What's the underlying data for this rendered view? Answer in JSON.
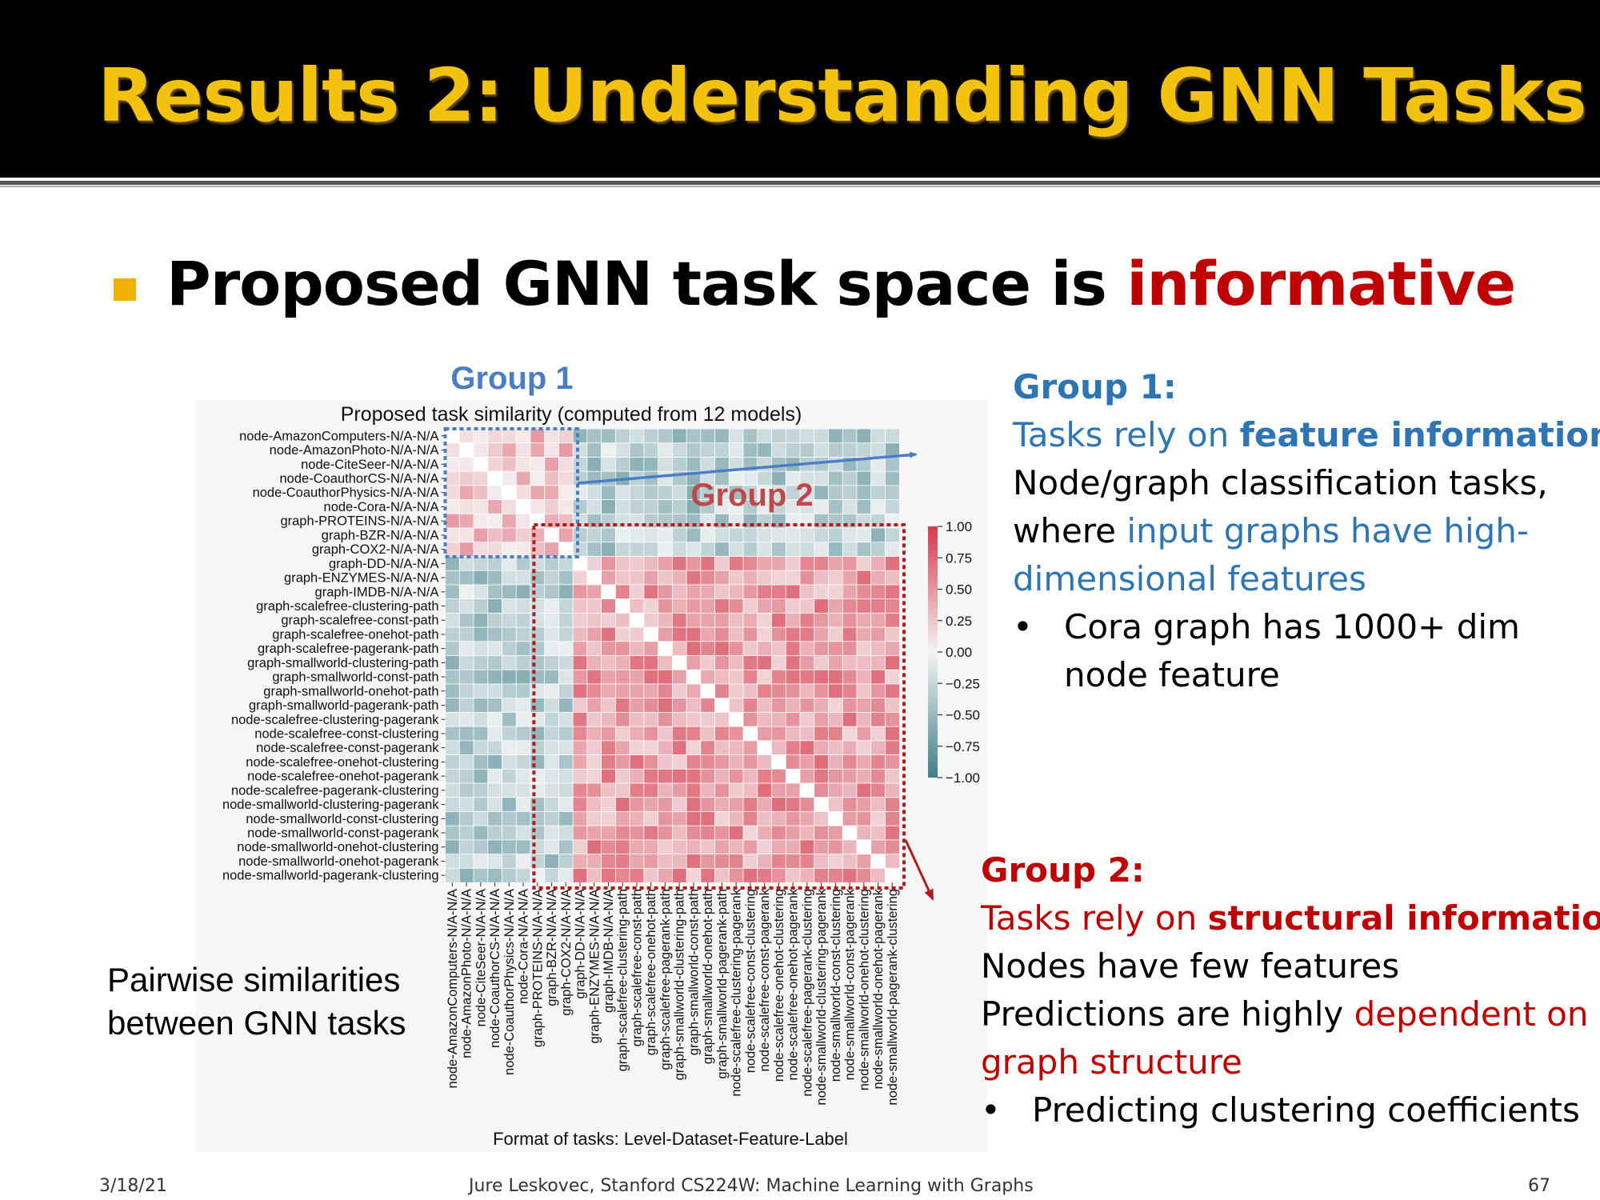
{
  "slide": {
    "title": "Results 2: Understanding GNN Tasks",
    "main_point_prefix": "Proposed GNN task space is ",
    "main_point_highlight": "informative",
    "caption_lines": [
      "Pairwise similarities",
      "between GNN tasks"
    ],
    "footer_date": "3/18/21",
    "footer_course": "Jure Leskovec, Stanford CS224W: Machine Learning with Graphs",
    "footer_page": "67"
  },
  "group1_panel": {
    "heading": "Group 1:",
    "line1_prefix": "Tasks rely on ",
    "line1_bold": "feature information",
    "line2": "Node/graph classification tasks,",
    "line3_prefix": "where ",
    "line3_highlight": "input graphs have high-",
    "line4_highlight": "dimensional features",
    "bullet_symbol": "•",
    "bullet_line1": "Cora graph has 1000+ dim",
    "bullet_line2": "node feature"
  },
  "group2_panel": {
    "heading": "Group 2:",
    "line1_prefix": "Tasks rely on ",
    "line1_bold": "structural information",
    "line2": "Nodes have few features",
    "line3_prefix": "Predictions are highly ",
    "line3_highlight": "dependent on",
    "line4_highlight": "graph structure",
    "bullet_symbol": "•",
    "bullet_line1": "Predicting clustering coefficients"
  },
  "colors": {
    "title_yellow": "#f3c20f",
    "accent_red": "#c00000",
    "accent_blue": "#2e75b6",
    "group1_box": "#4a7ec4",
    "group2_box": "#b01c1c",
    "heat_positive": "#d6394b",
    "heat_negative": "#3f7f8a"
  },
  "chart_data": {
    "type": "heatmap",
    "title": "Proposed task similarity (computed from 12 models)",
    "xlabel": "Format of tasks: Level-Dataset-Feature-Label",
    "group_labels": [
      "Group 1",
      "Group 2"
    ],
    "group1_range": [
      0,
      8
    ],
    "group2_range": [
      9,
      31
    ],
    "colorbar_range": [
      -1.0,
      1.0
    ],
    "colorbar_ticks": [
      "1.00",
      "0.75",
      "0.50",
      "0.25",
      "0.00",
      "−0.25",
      "−0.50",
      "−0.75",
      "−1.00"
    ],
    "tasks": [
      "node-AmazonComputers-N/A-N/A",
      "node-AmazonPhoto-N/A-N/A",
      "node-CiteSeer-N/A-N/A",
      "node-CoauthorCS-N/A-N/A",
      "node-CoauthorPhysics-N/A-N/A",
      "node-Cora-N/A-N/A",
      "graph-PROTEINS-N/A-N/A",
      "graph-BZR-N/A-N/A",
      "graph-COX2-N/A-N/A",
      "graph-DD-N/A-N/A",
      "graph-ENZYMES-N/A-N/A",
      "graph-IMDB-N/A-N/A",
      "graph-scalefree-clustering-path",
      "graph-scalefree-const-path",
      "graph-scalefree-onehot-path",
      "graph-scalefree-pagerank-path",
      "graph-smallworld-clustering-path",
      "graph-smallworld-const-path",
      "graph-smallworld-onehot-path",
      "graph-smallworld-pagerank-path",
      "node-scalefree-clustering-pagerank",
      "node-scalefree-const-clustering",
      "node-scalefree-const-pagerank",
      "node-scalefree-onehot-clustering",
      "node-scalefree-onehot-pagerank",
      "node-scalefree-pagerank-clustering",
      "node-smallworld-clustering-pagerank",
      "node-smallworld-const-clustering",
      "node-smallworld-const-pagerank",
      "node-smallworld-onehot-clustering",
      "node-smallworld-onehot-pagerank",
      "node-smallworld-pagerank-clustering"
    ]
  }
}
